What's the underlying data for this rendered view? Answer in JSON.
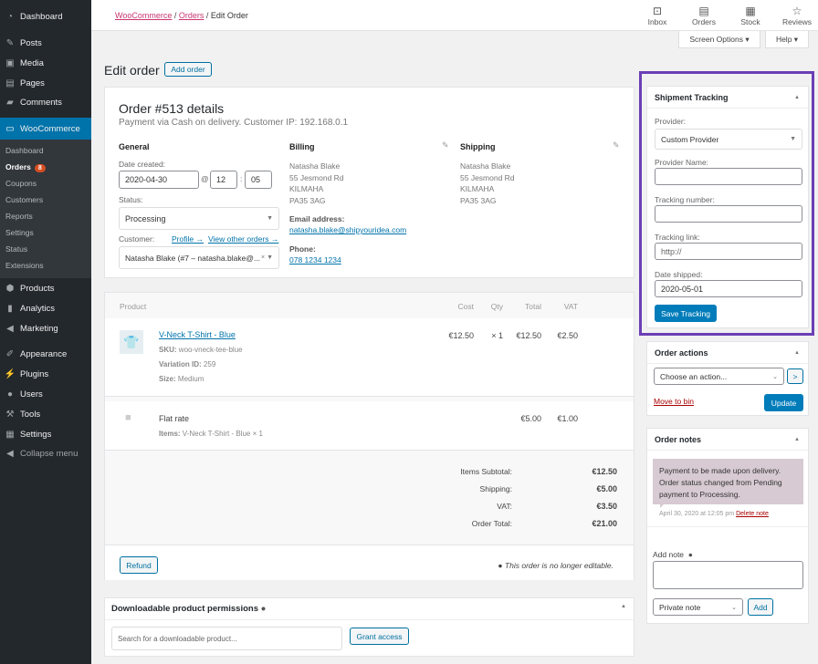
{
  "sidebar": {
    "items": [
      {
        "label": "Dashboard",
        "icon": "dashboard-icon",
        "glyph": "◔"
      },
      {
        "label": "Posts",
        "icon": "pin-icon",
        "glyph": "✎"
      },
      {
        "label": "Media",
        "icon": "media-icon",
        "glyph": "▣"
      },
      {
        "label": "Pages",
        "icon": "pages-icon",
        "glyph": "▤"
      },
      {
        "label": "Comments",
        "icon": "comment-icon",
        "glyph": "▰"
      },
      {
        "label": "WooCommerce",
        "icon": "woocommerce-icon",
        "glyph": "▭"
      },
      {
        "label": "Products",
        "icon": "products-icon",
        "glyph": "⬢"
      },
      {
        "label": "Analytics",
        "icon": "analytics-icon",
        "glyph": "▮"
      },
      {
        "label": "Marketing",
        "icon": "megaphone-icon",
        "glyph": "◀"
      },
      {
        "label": "Appearance",
        "icon": "brush-icon",
        "glyph": "✐"
      },
      {
        "label": "Plugins",
        "icon": "plugin-icon",
        "glyph": "⚡"
      },
      {
        "label": "Users",
        "icon": "user-icon",
        "glyph": "●"
      },
      {
        "label": "Tools",
        "icon": "wrench-icon",
        "glyph": "⚒"
      },
      {
        "label": "Settings",
        "icon": "settings-icon",
        "glyph": "▦"
      },
      {
        "label": "Collapse menu",
        "icon": "collapse-icon",
        "glyph": "◀"
      }
    ],
    "submenu": [
      "Dashboard",
      "Orders",
      "Coupons",
      "Customers",
      "Reports",
      "Settings",
      "Status",
      "Extensions"
    ],
    "orders_badge": "8"
  },
  "breadcrumb": [
    "WooCommerce",
    "Orders",
    "Edit Order"
  ],
  "topbar": [
    {
      "label": "Inbox",
      "glyph": "⊡"
    },
    {
      "label": "Orders",
      "glyph": "▤"
    },
    {
      "label": "Stock",
      "glyph": "▦"
    },
    {
      "label": "Reviews",
      "glyph": "☆"
    }
  ],
  "screen_options": "Screen Options ▾",
  "help": "Help ▾",
  "page_title": "Edit order",
  "add_order": "Add order",
  "order": {
    "title": "Order #513 details",
    "subtitle": "Payment via Cash on delivery. Customer IP: 192.168.0.1",
    "general": "General",
    "date_label": "Date created:",
    "date": "2020-04-30",
    "hour": "12",
    "minute": "05",
    "at": "@",
    "colon": ":",
    "status_label": "Status:",
    "status": "Processing",
    "customer_label": "Customer:",
    "profile": "Profile →",
    "other_orders": "View other orders →",
    "customer": "Natasha Blake (#7 – natasha.blake@...",
    "billing": "Billing",
    "billing_addr": [
      "Natasha Blake",
      "55 Jesmond Rd",
      "KILMAHA",
      "PA35 3AG"
    ],
    "email_label": "Email address:",
    "email": "natasha.blake@shipyouridea.com",
    "phone_label": "Phone:",
    "phone": "078 1234 1234",
    "shipping": "Shipping",
    "shipping_addr": [
      "Natasha Blake",
      "55 Jesmond Rd",
      "KILMAHA",
      "PA35 3AG"
    ]
  },
  "items": {
    "headers": [
      "Product",
      "Cost",
      "Qty",
      "Total",
      "VAT"
    ],
    "product": {
      "name": "V-Neck T-Shirt - Blue",
      "sku_k": "SKU:",
      "sku": "woo-vneck-tee-blue",
      "var_k": "Variation ID:",
      "var": "259",
      "size_k": "Size:",
      "size": "Medium",
      "cost": "€12.50",
      "qty": "× 1",
      "total": "€12.50",
      "vat": "€2.50"
    },
    "shipping": {
      "name": "Flat rate",
      "items_k": "Items:",
      "items": "V-Neck T-Shirt - Blue × 1",
      "total": "€5.00",
      "vat": "€1.00"
    },
    "totals": [
      {
        "k": "Items Subtotal:",
        "v": "€12.50"
      },
      {
        "k": "Shipping:",
        "v": "€5.00"
      },
      {
        "k": "VAT:",
        "v": "€3.50"
      },
      {
        "k": "Order Total:",
        "v": "€21.00"
      }
    ],
    "refund": "Refund",
    "not_editable": "This order is no longer editable."
  },
  "downloads": {
    "title": "Downloadable product permissions",
    "placeholder": "Search for a downloadable product...",
    "grant": "Grant access"
  },
  "tracking": {
    "title": "Shipment Tracking",
    "provider_label": "Provider:",
    "provider": "Custom Provider",
    "name_label": "Provider Name:",
    "number_label": "Tracking number:",
    "link_label": "Tracking link:",
    "link_placeholder": "http://",
    "date_label": "Date shipped:",
    "date": "2020-05-01",
    "save": "Save Tracking",
    "highlight_color": "#6b3fb5"
  },
  "actions": {
    "title": "Order actions",
    "choose": "Choose an action...",
    "go": ">",
    "bin": "Move to bin",
    "update": "Update"
  },
  "notes": {
    "title": "Order notes",
    "note": "Payment to be made upon delivery. Order status changed from Pending payment to Processing.",
    "date": "April 30, 2020 at 12:05 pm",
    "delete": "Delete note",
    "add_label": "Add note",
    "type": "Private note",
    "add": "Add"
  }
}
